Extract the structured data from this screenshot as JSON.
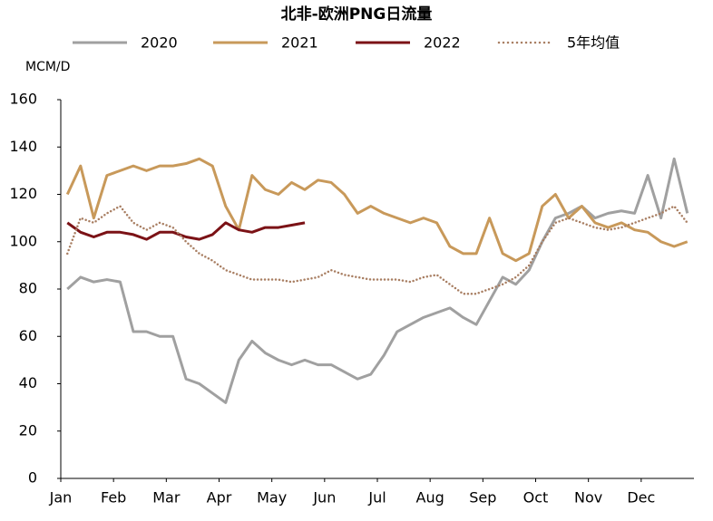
{
  "chart_data": {
    "type": "line",
    "title": "北非-欧洲PNG日流量",
    "y_label": "MCM/D",
    "categories": [
      "Jan",
      null,
      null,
      null,
      "Feb",
      null,
      null,
      null,
      "Mar",
      null,
      null,
      null,
      "Apr",
      null,
      null,
      null,
      "May",
      null,
      null,
      null,
      "Jun",
      null,
      null,
      null,
      "Jul",
      null,
      null,
      null,
      "Aug",
      null,
      null,
      null,
      "Sep",
      null,
      null,
      null,
      "Oct",
      null,
      null,
      null,
      "Nov",
      null,
      null,
      null,
      "Dec",
      null,
      null,
      null
    ],
    "ylim": [
      0,
      160
    ],
    "yticks": [
      0,
      20,
      40,
      60,
      80,
      100,
      120,
      140,
      160
    ],
    "series": [
      {
        "name": "2020",
        "color": "#a0a0a0",
        "style": "solid",
        "values": [
          80,
          85,
          83,
          84,
          83,
          62,
          62,
          60,
          60,
          42,
          40,
          36,
          32,
          50,
          58,
          53,
          50,
          48,
          50,
          48,
          48,
          45,
          42,
          44,
          52,
          62,
          65,
          68,
          70,
          72,
          68,
          65,
          75,
          85,
          82,
          88,
          100,
          110,
          112,
          115,
          110,
          112,
          113,
          112,
          128,
          110,
          135,
          112
        ]
      },
      {
        "name": "2021",
        "color": "#c8995a",
        "style": "solid",
        "values": [
          120,
          132,
          110,
          128,
          130,
          132,
          130,
          132,
          132,
          133,
          135,
          132,
          115,
          105,
          128,
          122,
          120,
          125,
          122,
          126,
          125,
          120,
          112,
          115,
          112,
          110,
          108,
          110,
          108,
          98,
          95,
          95,
          110,
          95,
          92,
          95,
          115,
          120,
          110,
          115,
          108,
          106,
          108,
          105,
          104,
          100,
          98,
          100
        ]
      },
      {
        "name": "2022",
        "color": "#7b1216",
        "style": "solid",
        "values": [
          108,
          104,
          102,
          104,
          104,
          103,
          101,
          104,
          104,
          102,
          101,
          103,
          108,
          105,
          104,
          106,
          106,
          107,
          108,
          null,
          null,
          null,
          null,
          null,
          null,
          null,
          null,
          null,
          null,
          null,
          null,
          null,
          null,
          null,
          null,
          null,
          null,
          null,
          null,
          null,
          null,
          null,
          null,
          null,
          null,
          null,
          null,
          null
        ]
      },
      {
        "name": "5年均值",
        "color": "#a87e62",
        "style": "dotted",
        "values": [
          95,
          110,
          108,
          112,
          115,
          108,
          105,
          108,
          106,
          100,
          95,
          92,
          88,
          86,
          84,
          84,
          84,
          83,
          84,
          85,
          88,
          86,
          85,
          84,
          84,
          84,
          83,
          85,
          86,
          82,
          78,
          78,
          80,
          82,
          85,
          90,
          100,
          108,
          110,
          108,
          106,
          105,
          106,
          108,
          110,
          112,
          115,
          108
        ]
      }
    ]
  }
}
